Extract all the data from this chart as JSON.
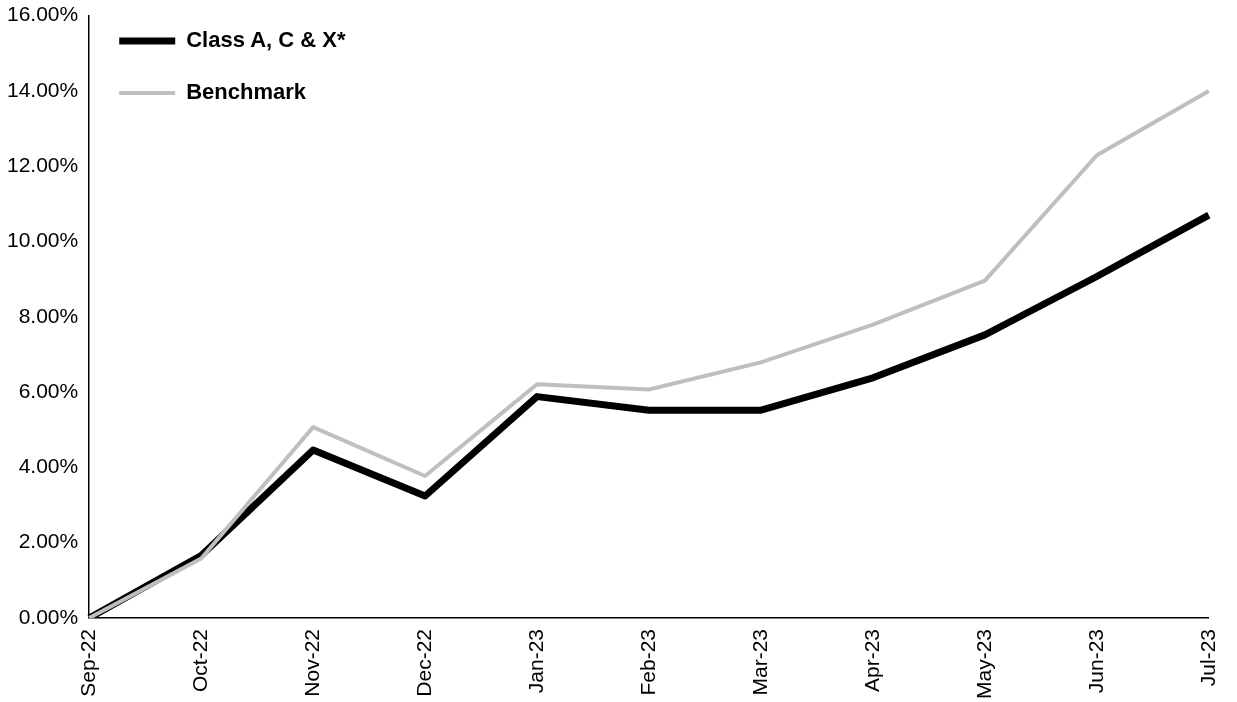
{
  "chart_data": {
    "type": "line",
    "categories": [
      "Sep-22",
      "Oct-22",
      "Nov-22",
      "Dec-22",
      "Jan-23",
      "Feb-23",
      "Mar-23",
      "Apr-23",
      "May-23",
      "Jun-23",
      "Jul-23"
    ],
    "series": [
      {
        "name": "Class A, C & X*",
        "color": "#000000",
        "values": [
          0,
          1.66,
          4.46,
          3.24,
          5.88,
          5.52,
          5.52,
          6.38,
          7.52,
          9.07,
          10.7
        ]
      },
      {
        "name": "Benchmark",
        "color": "#bfbfbf",
        "values": [
          0,
          1.58,
          5.07,
          3.77,
          6.21,
          6.07,
          6.79,
          7.79,
          8.96,
          12.29,
          14.0
        ]
      }
    ],
    "ylim": [
      0,
      16
    ],
    "yticks": [
      {
        "value": 0,
        "label": "0.00%"
      },
      {
        "value": 2,
        "label": "2.00%"
      },
      {
        "value": 4,
        "label": "4.00%"
      },
      {
        "value": 6,
        "label": "6.00%"
      },
      {
        "value": 8,
        "label": "8.00%"
      },
      {
        "value": 10,
        "label": "10.00%"
      },
      {
        "value": 12,
        "label": "12.00%"
      },
      {
        "value": 14,
        "label": "14.00%"
      },
      {
        "value": 16,
        "label": "16.00%"
      }
    ],
    "grid": false,
    "legend": "top left",
    "marker": "none",
    "line_style": "solid"
  }
}
